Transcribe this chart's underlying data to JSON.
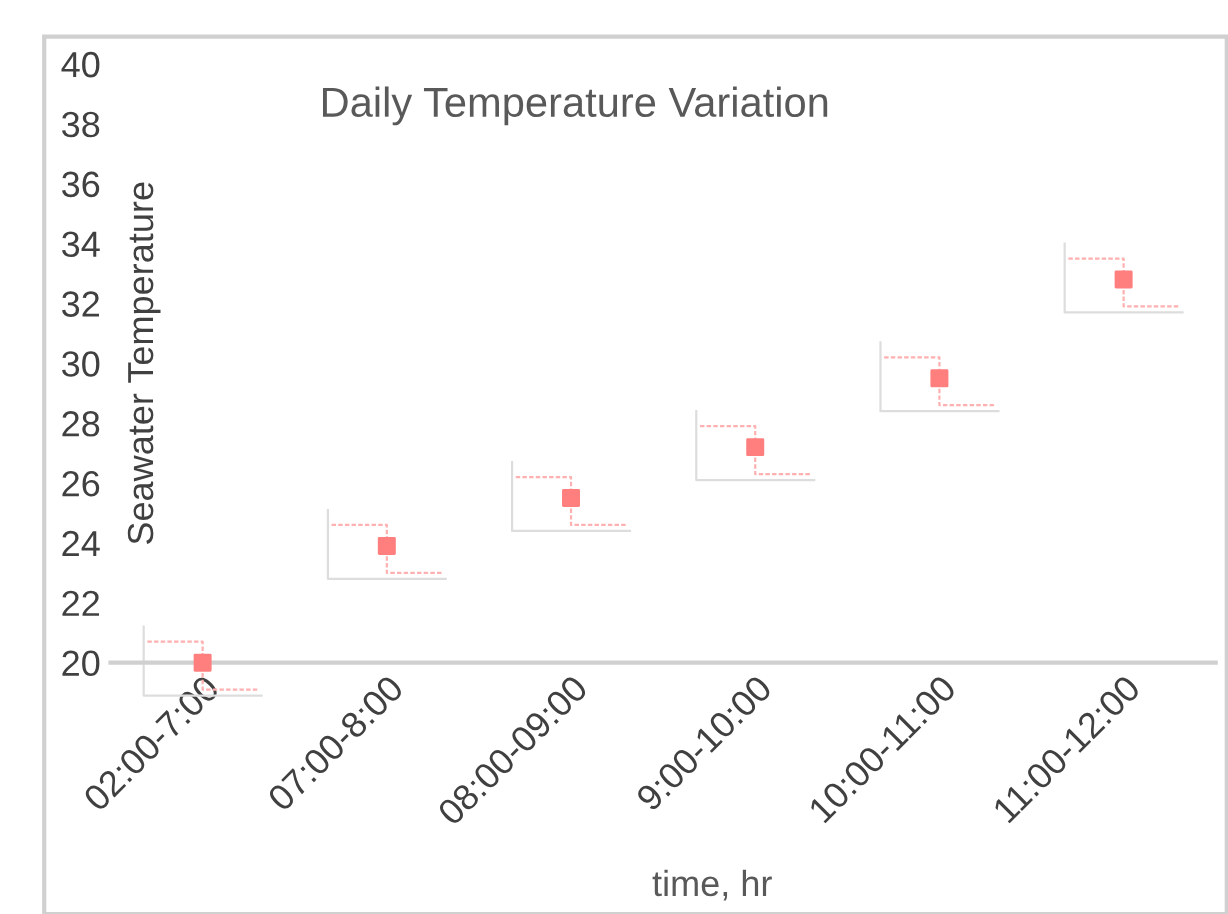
{
  "chart_data": {
    "type": "scatter",
    "title": "Daily Temperature Variation",
    "xlabel": "time, hr",
    "ylabel": "Seawater Temperature",
    "categories": [
      "02:00-7:00",
      "07:00-8:00",
      "08:00-09:00",
      "9:00-10:00",
      "10:00-11:00",
      "11:00-12:00"
    ],
    "values": [
      20.0,
      23.9,
      25.5,
      27.2,
      29.5,
      32.8
    ],
    "color": "#ff7f7f",
    "marker": "square",
    "grid": false,
    "legend": false,
    "ylim": [
      20,
      40
    ],
    "yticks": [
      20,
      22,
      24,
      26,
      28,
      30,
      32,
      34,
      36,
      38,
      40
    ]
  }
}
